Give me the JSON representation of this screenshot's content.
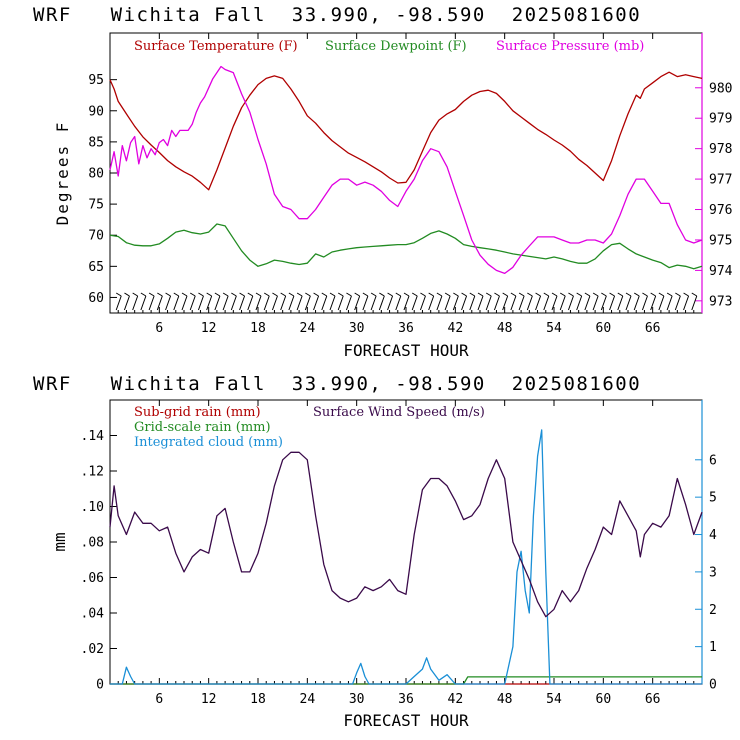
{
  "colors": {
    "temperature": "#b00000",
    "dewpoint": "#228b22",
    "pressure": "#e000e0",
    "subgrid_rain": "#b00000",
    "gridscale_rain": "#228b22",
    "cloud": "#1a8fd6",
    "wind": "#3a0a4a",
    "axis": "#000000",
    "right_axis_top": "#e000e0",
    "right_axis_bottom": "#1a8fd6"
  },
  "chart_data": [
    {
      "type": "line",
      "title": "WRF   Wichita Fall  33.990, -98.590  2025081600",
      "xlabel": "FORECAST HOUR",
      "ylabel": "Degrees F",
      "xlim": [
        0,
        72
      ],
      "xticks": [
        6,
        12,
        18,
        24,
        30,
        36,
        42,
        48,
        54,
        60,
        66
      ],
      "xtick_labels": [
        "6",
        "12",
        "18",
        "24",
        "30",
        "36",
        "42",
        "48",
        "54",
        "60",
        "66"
      ],
      "ylim": [
        57.5,
        102.5
      ],
      "yticks": [
        60,
        65,
        70,
        75,
        80,
        85,
        90,
        95
      ],
      "ytick_labels": [
        "60",
        "65",
        "70",
        "75",
        "80",
        "85",
        "90",
        "95"
      ],
      "y2lim": [
        972.6,
        981.8
      ],
      "y2ticks": [
        973,
        974,
        975,
        976,
        977,
        978,
        979,
        980
      ],
      "y2tick_labels": [
        "973",
        "974",
        "975",
        "976",
        "977",
        "978",
        "979",
        "980"
      ],
      "grid": false,
      "legend_position": "top-left, inside",
      "wind_barbs": "row of wind barbs along the bottom of the plot, every forecast hour",
      "series": [
        {
          "name": "Surface Temperature (F)",
          "axis": "left",
          "x": [
            0,
            0.5,
            1,
            2,
            3,
            4,
            5,
            6,
            7,
            8,
            9,
            10,
            11,
            12,
            13,
            14,
            15,
            16,
            17,
            18,
            19,
            20,
            21,
            22,
            23,
            24,
            25,
            26,
            27,
            28,
            29,
            30,
            31,
            32,
            33,
            34,
            35,
            36,
            37,
            38,
            39,
            40,
            41,
            42,
            43,
            44,
            45,
            46,
            47,
            48,
            49,
            50,
            51,
            52,
            53,
            54,
            55,
            56,
            57,
            58,
            59,
            60,
            61,
            62,
            63,
            64,
            64.5,
            65,
            66,
            67,
            68,
            69,
            70,
            71,
            72
          ],
          "values": [
            95,
            93.5,
            91.5,
            89.5,
            87.5,
            85.8,
            84.5,
            83.3,
            82,
            81,
            80.2,
            79.5,
            78.5,
            77.3,
            80.5,
            84,
            87.5,
            90.5,
            92.5,
            94.2,
            95.2,
            95.6,
            95.2,
            93.5,
            91.5,
            89.2,
            88,
            86.5,
            85.2,
            84.2,
            83.2,
            82.5,
            81.8,
            81,
            80.2,
            79.2,
            78.4,
            78.5,
            80.5,
            83.5,
            86.5,
            88.5,
            89.5,
            90.2,
            91.5,
            92.5,
            93.1,
            93.3,
            92.8,
            91.5,
            90,
            89,
            88,
            87,
            86.2,
            85.3,
            84.5,
            83.5,
            82.2,
            81.2,
            80,
            78.8,
            82,
            86,
            89.5,
            92.5,
            92,
            93.5,
            94.5,
            95.5,
            96.2,
            95.5,
            95.8,
            95.5,
            95.2
          ]
        },
        {
          "name": "Surface Dewpoint (F)",
          "axis": "left",
          "x": [
            0,
            1,
            2,
            3,
            4,
            5,
            6,
            7,
            8,
            9,
            10,
            11,
            12,
            13,
            14,
            15,
            16,
            17,
            18,
            19,
            20,
            21,
            22,
            23,
            24,
            25,
            26,
            27,
            28,
            29,
            30,
            31,
            32,
            33,
            34,
            35,
            36,
            37,
            38,
            39,
            40,
            41,
            42,
            43,
            44,
            45,
            46,
            47,
            48,
            49,
            50,
            51,
            52,
            53,
            54,
            55,
            56,
            57,
            58,
            59,
            60,
            61,
            62,
            63,
            64,
            65,
            66,
            67,
            68,
            69,
            70,
            71,
            72
          ],
          "values": [
            70,
            69.8,
            68.8,
            68.4,
            68.3,
            68.3,
            68.6,
            69.5,
            70.5,
            70.8,
            70.4,
            70.2,
            70.5,
            71.8,
            71.5,
            69.5,
            67.5,
            66,
            65,
            65.4,
            66,
            65.8,
            65.5,
            65.3,
            65.5,
            67,
            66.5,
            67.3,
            67.6,
            67.8,
            68,
            68.1,
            68.2,
            68.3,
            68.4,
            68.5,
            68.5,
            68.8,
            69.5,
            70.3,
            70.7,
            70.2,
            69.5,
            68.5,
            68.2,
            68,
            67.8,
            67.6,
            67.3,
            67,
            66.8,
            66.6,
            66.4,
            66.2,
            66.5,
            66.2,
            65.8,
            65.5,
            65.5,
            66.2,
            67.5,
            68.5,
            68.7,
            67.8,
            67,
            66.5,
            66,
            65.6,
            64.8,
            65.2,
            65,
            64.6,
            65
          ]
        },
        {
          "name": "Surface Pressure (mb)",
          "axis": "right",
          "x": [
            0,
            0.5,
            1,
            1.5,
            2,
            2.5,
            3,
            3.5,
            4,
            4.5,
            5,
            5.5,
            6,
            6.5,
            7,
            7.5,
            8,
            8.5,
            9,
            9.5,
            10,
            10.5,
            11,
            11.5,
            12,
            12.5,
            13,
            13.5,
            14,
            15,
            16,
            17,
            18,
            19,
            20,
            21,
            22,
            23,
            24,
            25,
            26,
            27,
            28,
            29,
            30,
            31,
            32,
            33,
            34,
            35,
            36,
            37,
            38,
            39,
            40,
            41,
            42,
            43,
            44,
            45,
            46,
            47,
            48,
            49,
            50,
            51,
            52,
            53,
            54,
            55,
            56,
            57,
            58,
            59,
            60,
            61,
            62,
            63,
            64,
            65,
            66,
            67,
            68,
            69,
            70,
            71,
            72
          ],
          "values": [
            977.3,
            977.9,
            977.1,
            978.1,
            977.6,
            978.2,
            978.4,
            977.5,
            978.1,
            977.7,
            978.0,
            977.8,
            978.2,
            978.3,
            978.1,
            978.6,
            978.4,
            978.6,
            978.6,
            978.6,
            978.8,
            979.2,
            979.5,
            979.7,
            980.0,
            980.3,
            980.5,
            980.7,
            980.6,
            980.5,
            979.8,
            979.2,
            978.3,
            977.5,
            976.5,
            976.1,
            976.0,
            975.7,
            975.7,
            976.0,
            976.4,
            976.8,
            977.0,
            977.0,
            976.8,
            976.9,
            976.8,
            976.6,
            976.3,
            976.1,
            976.6,
            977.0,
            977.6,
            978.0,
            977.9,
            977.4,
            976.6,
            975.8,
            975.0,
            974.5,
            974.2,
            974.0,
            973.9,
            974.1,
            974.5,
            974.8,
            975.1,
            975.1,
            975.1,
            975.0,
            974.9,
            974.9,
            975.0,
            975.0,
            974.9,
            975.2,
            975.8,
            976.5,
            977.0,
            977.0,
            976.6,
            976.2,
            976.2,
            975.5,
            975.0,
            974.9,
            975.0
          ]
        }
      ]
    },
    {
      "type": "line",
      "title": "WRF   Wichita Fall  33.990, -98.590  2025081600",
      "xlabel": "FORECAST HOUR",
      "ylabel": "mm",
      "xlim": [
        0,
        72
      ],
      "xticks": [
        6,
        12,
        18,
        24,
        30,
        36,
        42,
        48,
        54,
        60,
        66
      ],
      "xtick_labels": [
        "6",
        "12",
        "18",
        "24",
        "30",
        "36",
        "42",
        "48",
        "54",
        "60",
        "66"
      ],
      "ylim": [
        0,
        0.16
      ],
      "yticks": [
        0,
        0.02,
        0.04,
        0.06,
        0.08,
        0.1,
        0.12,
        0.14
      ],
      "ytick_labels": [
        "0",
        ".02",
        ".04",
        ".06",
        ".08",
        ".10",
        ".12",
        ".14"
      ],
      "y2lim": [
        0,
        7.6
      ],
      "y2ticks": [
        0,
        1,
        2,
        3,
        4,
        5,
        6
      ],
      "y2tick_labels": [
        "0",
        "1",
        "2",
        "3",
        "4",
        "5",
        "6"
      ],
      "grid": false,
      "legend_position": "top-left, inside",
      "series": [
        {
          "name": "Sub-grid rain (mm)",
          "axis": "left",
          "x": [
            0,
            72
          ],
          "values": [
            0,
            0
          ]
        },
        {
          "name": "Grid-scale rain (mm)",
          "axis": "left",
          "x": [
            0,
            43,
            43.5,
            72
          ],
          "values": [
            0,
            0,
            0.004,
            0.004
          ]
        },
        {
          "name": "Integrated cloud (mm)",
          "axis": "right",
          "x": [
            0,
            1.5,
            2,
            2.5,
            3,
            29.5,
            30,
            30.5,
            31,
            31.5,
            36,
            37,
            38,
            38.5,
            39,
            40,
            41,
            42,
            48,
            49,
            49.5,
            50,
            50.5,
            51,
            51.5,
            52,
            52.5,
            53,
            53.5,
            72
          ],
          "values": [
            0,
            0,
            0.45,
            0.2,
            0,
            0,
            0.3,
            0.55,
            0.2,
            0,
            0,
            0.2,
            0.4,
            0.7,
            0.4,
            0.1,
            0.25,
            0,
            0,
            1.0,
            3.0,
            3.55,
            2.5,
            1.9,
            4.5,
            6.1,
            6.8,
            3.0,
            0,
            0
          ]
        },
        {
          "name": "Surface Wind Speed (m/s)",
          "axis": "right",
          "x": [
            0,
            0.5,
            1,
            2,
            3,
            4,
            5,
            6,
            7,
            8,
            9,
            10,
            11,
            12,
            13,
            14,
            15,
            16,
            17,
            18,
            19,
            20,
            21,
            22,
            23,
            24,
            25,
            26,
            27,
            28,
            29,
            30,
            31,
            32,
            33,
            34,
            35,
            36,
            37,
            38,
            39,
            40,
            41,
            42,
            43,
            44,
            45,
            46,
            47,
            48,
            49,
            50,
            51,
            52,
            53,
            54,
            55,
            56,
            57,
            58,
            59,
            60,
            61,
            62,
            63,
            64,
            64.5,
            65,
            66,
            67,
            68,
            69,
            70,
            71,
            72
          ],
          "values": [
            4.2,
            5.3,
            4.5,
            4.0,
            4.6,
            4.3,
            4.3,
            4.1,
            4.2,
            3.5,
            3.0,
            3.4,
            3.6,
            3.5,
            4.5,
            4.7,
            3.8,
            3.0,
            3.0,
            3.5,
            4.3,
            5.3,
            6.0,
            6.2,
            6.2,
            6.0,
            4.5,
            3.2,
            2.5,
            2.3,
            2.2,
            2.3,
            2.6,
            2.5,
            2.6,
            2.8,
            2.5,
            2.4,
            4.0,
            5.2,
            5.5,
            5.5,
            5.3,
            4.9,
            4.4,
            4.5,
            4.8,
            5.5,
            6.0,
            5.5,
            3.8,
            3.3,
            2.8,
            2.2,
            1.8,
            2.0,
            2.5,
            2.2,
            2.5,
            3.1,
            3.6,
            4.2,
            4.0,
            4.9,
            4.5,
            4.1,
            3.4,
            4.0,
            4.3,
            4.2,
            4.5,
            5.5,
            4.8,
            4.0,
            4.6
          ]
        }
      ]
    }
  ]
}
